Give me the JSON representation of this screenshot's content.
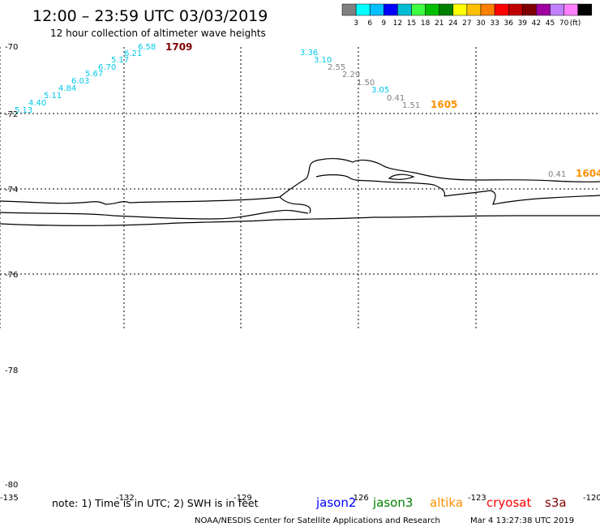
{
  "title": "12:00 – 23:59 UTC 03/03/2019",
  "subtitle": "12 hour collection of altimeter wave heights",
  "legend": {
    "unit": "(ft)",
    "colors": [
      "#808080",
      "#00ffff",
      "#00c0ff",
      "#0000ff",
      "#00bcd4",
      "#40ff40",
      "#00c000",
      "#008000",
      "#ffff00",
      "#ffc000",
      "#ff8000",
      "#ff0000",
      "#c00000",
      "#800000",
      "#a000a0",
      "#c080ff",
      "#ff80ff",
      "#000000"
    ],
    "labels": [
      "3",
      "6",
      "9",
      "12",
      "15",
      "18",
      "21",
      "24",
      "27",
      "30",
      "33",
      "36",
      "39",
      "42",
      "45",
      "70"
    ]
  },
  "axes": {
    "lat_labels": [
      "-70",
      "-72",
      "-74",
      "-76",
      "-78",
      "-80"
    ],
    "lon_labels": [
      "-135",
      "-132",
      "-129",
      "-126",
      "-123",
      "-120"
    ]
  },
  "tracks": [
    {
      "name": "track-west",
      "color": "#00c8e8",
      "values": [
        "5.13",
        "4.40",
        "5.11",
        "4.84",
        "6.03",
        "5.67",
        "6.70",
        "5.17",
        "6.21",
        "6.58"
      ],
      "time_label": "1709",
      "time_color": "#800000"
    },
    {
      "name": "track-middle",
      "values": [
        "3.36",
        "3.10",
        "2.55",
        "2.29",
        "1.50",
        "3.05",
        "0.41",
        "1.51"
      ],
      "value_colors": [
        "#00c8e8",
        "#00c8e8",
        "#808080",
        "#808080",
        "#808080",
        "#00c8e8",
        "#808080",
        "#808080"
      ],
      "time_label": "1605",
      "time_color": "#ff9000"
    },
    {
      "name": "track-east",
      "values": [
        "0.41"
      ],
      "value_colors": [
        "#808080"
      ],
      "time_label": "1604",
      "time_color": "#ff9000"
    }
  ],
  "footer": {
    "note": "note:  1) Time is in UTC;  2) SWH is in feet",
    "satellites": [
      {
        "name": "jason2",
        "color": "#0000ff"
      },
      {
        "name": "jason3",
        "color": "#008000"
      },
      {
        "name": "altika",
        "color": "#ff9000"
      },
      {
        "name": "cryosat",
        "color": "#ff0000"
      },
      {
        "name": "s3a",
        "color": "#800000"
      }
    ],
    "credit": "NOAA/NESDIS Center for Satellite Applications and Research",
    "timestamp": "Mar  4 13:27:38 UTC 2019"
  }
}
